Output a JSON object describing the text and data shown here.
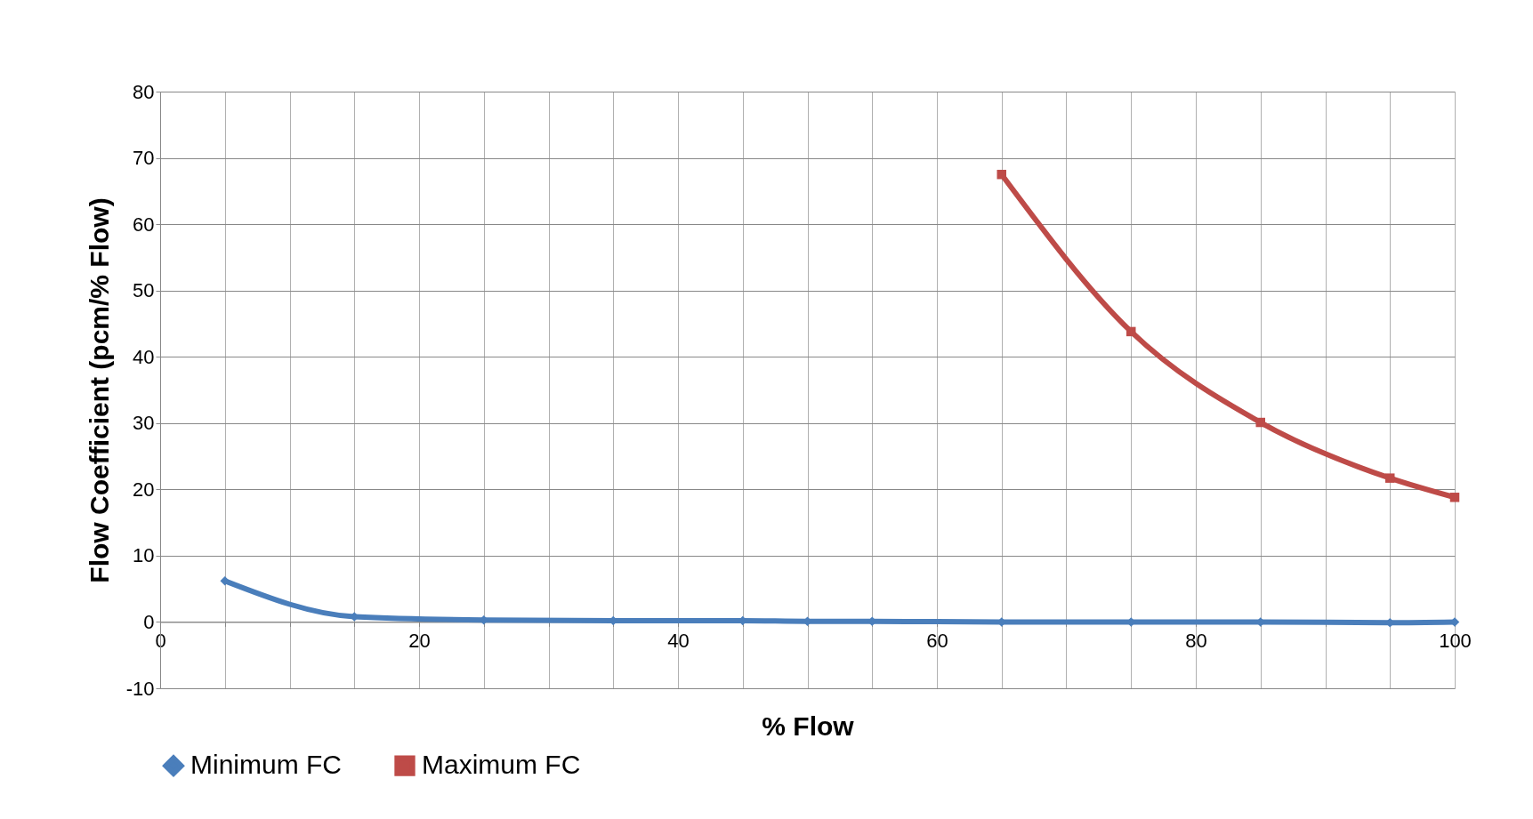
{
  "chart_data": {
    "type": "line",
    "xlabel": "% Flow",
    "ylabel": "Flow Coefficient (pcm/% Flow)",
    "xlim": [
      0,
      100
    ],
    "xticks": [
      0,
      {
        "value": 5,
        "label": null
      },
      {
        "value": 10,
        "label": null
      },
      {
        "value": 15,
        "label": null
      },
      20,
      {
        "value": 25,
        "label": null
      },
      {
        "value": 30,
        "label": null
      },
      {
        "value": 35,
        "label": null
      },
      40,
      {
        "value": 45,
        "label": null
      },
      {
        "value": 50,
        "label": null
      },
      {
        "value": 55,
        "label": null
      },
      60,
      {
        "value": 65,
        "label": null
      },
      {
        "value": 70,
        "label": null
      },
      {
        "value": 75,
        "label": null
      },
      80,
      {
        "value": 85,
        "label": null
      },
      {
        "value": 90,
        "label": null
      },
      {
        "value": 95,
        "label": null
      },
      100
    ],
    "ylim": [
      -10,
      80
    ],
    "yticks": [
      -10,
      0,
      10,
      20,
      30,
      40,
      50,
      60,
      70,
      80
    ],
    "grid": true,
    "legend": "bottom",
    "series": [
      {
        "name": "Minimum FC",
        "color": "#4a7ebb",
        "marker": "diamond",
        "x": [
          5,
          15,
          25,
          35,
          45,
          50,
          55,
          65,
          75,
          85,
          95,
          100
        ],
        "values": [
          6.2,
          0.8,
          0.3,
          0.2,
          0.2,
          0.1,
          0.1,
          0,
          0,
          0,
          -0.1,
          0
        ]
      },
      {
        "name": "Maximum FC",
        "color": "#be4b48",
        "marker": "square",
        "x": [
          65,
          75,
          85,
          95,
          100
        ],
        "values": [
          67.5,
          43.8,
          30.1,
          21.7,
          18.8
        ]
      }
    ]
  }
}
